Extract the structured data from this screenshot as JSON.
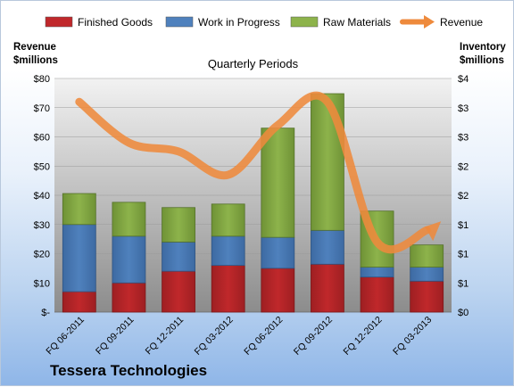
{
  "colors": {
    "finished_goods": "#c0282b",
    "work_in_progress": "#4f81bd",
    "raw_materials": "#8db34b",
    "revenue": "#ee8a3c"
  },
  "footer": {
    "company": "Tessera Technologies"
  },
  "chart_data": {
    "type": "bar",
    "title": "Quarterly Periods",
    "ylabel_left": "Revenue\n$millions",
    "ylabel_right": "Inventory\n$millions",
    "categories": [
      "FQ 06-2011",
      "FQ 09-2011",
      "FQ 12-2011",
      "FQ 03-2012",
      "FQ 06-2012",
      "FQ 09-2012",
      "FQ 12-2012",
      "FQ 03-2013"
    ],
    "left_axis": {
      "ylim": [
        0,
        80
      ],
      "ticks": [
        "$-",
        "$10",
        "$20",
        "$30",
        "$40",
        "$50",
        "$60",
        "$70",
        "$80"
      ]
    },
    "right_axis": {
      "ylim": [
        0,
        4
      ],
      "ticks": [
        "$0",
        "$1",
        "$1",
        "$1",
        "$2",
        "$2",
        "$3",
        "$3",
        "$4"
      ]
    },
    "grid": true,
    "legend_position": "top",
    "series": [
      {
        "name": "Finished Goods",
        "type": "stacked-bar",
        "axis": "right",
        "values": [
          0.35,
          0.5,
          0.7,
          0.8,
          0.75,
          0.82,
          0.6,
          0.53
        ]
      },
      {
        "name": "Work in Progress",
        "type": "stacked-bar",
        "axis": "right",
        "values": [
          1.15,
          0.8,
          0.5,
          0.5,
          0.53,
          0.58,
          0.17,
          0.24
        ]
      },
      {
        "name": "Raw Materials",
        "type": "stacked-bar",
        "axis": "right",
        "values": [
          0.53,
          0.58,
          0.59,
          0.55,
          1.87,
          2.34,
          0.96,
          0.38
        ]
      },
      {
        "name": "Revenue",
        "type": "line",
        "axis": "left",
        "values": [
          72,
          58,
          55,
          47,
          64,
          72,
          24,
          28
        ]
      }
    ]
  }
}
